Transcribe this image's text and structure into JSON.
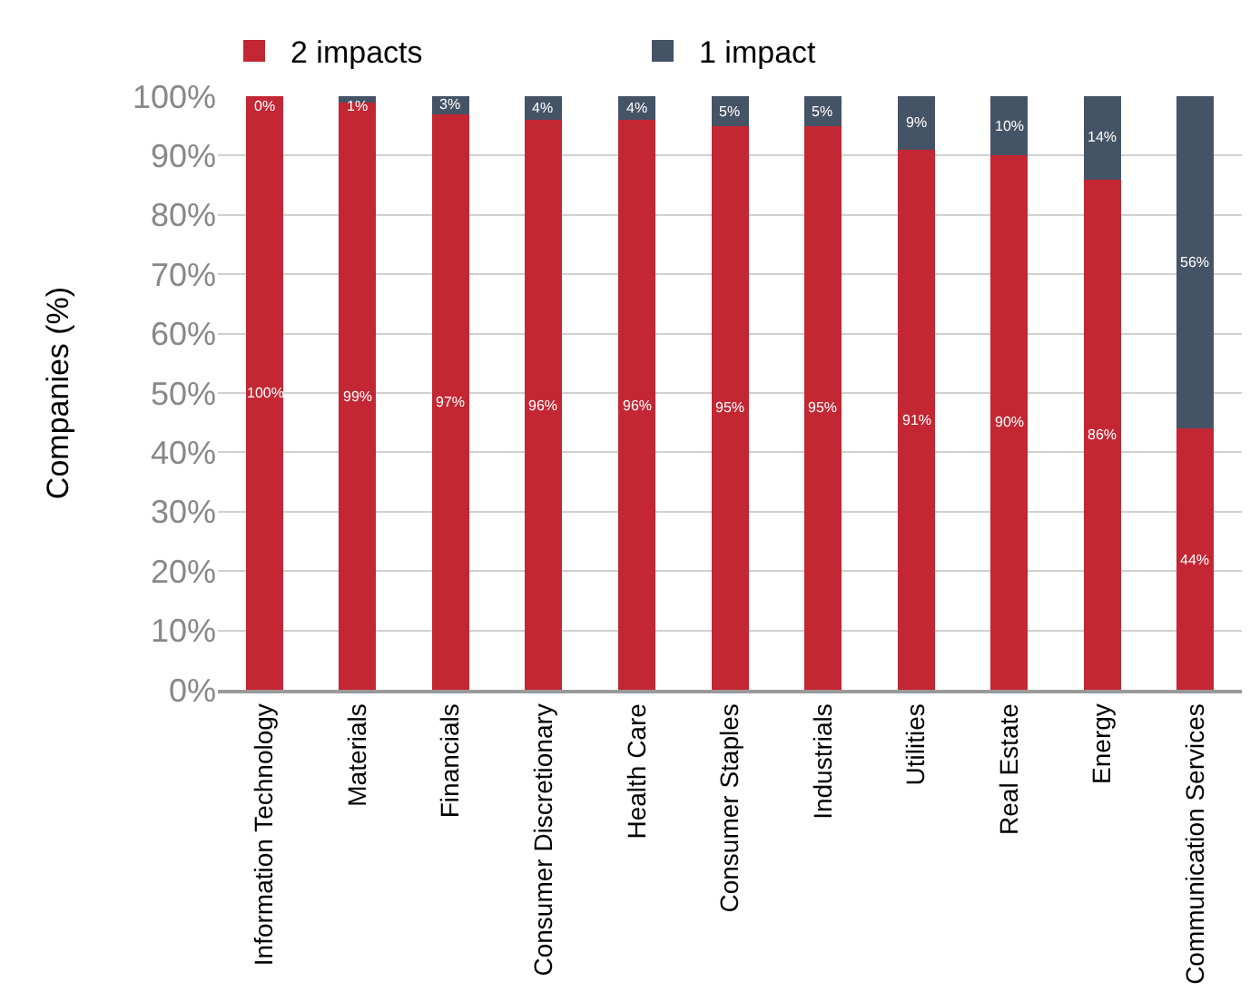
{
  "chart_data": {
    "type": "bar",
    "stacked": true,
    "ylabel": "Companies (%)",
    "categories": [
      "Information Technology",
      "Materials",
      "Financials",
      "Consumer Discretionary",
      "Health Care",
      "Consumer Staples",
      "Industrials",
      "Utilities",
      "Real Estate",
      "Energy",
      "Communication Services"
    ],
    "series": [
      {
        "name": "2 impacts",
        "color": "#c32733",
        "values": [
          100,
          99,
          97,
          96,
          96,
          95,
          95,
          91,
          90,
          86,
          44
        ],
        "value_labels": [
          "100%",
          "99%",
          "97%",
          "96%",
          "96%",
          "95%",
          "95%",
          "91%",
          "90%",
          "86%",
          "44%"
        ]
      },
      {
        "name": "1 impact",
        "color": "#455366",
        "values": [
          0,
          1,
          3,
          4,
          4,
          5,
          5,
          9,
          10,
          14,
          56
        ],
        "value_labels": [
          "0%",
          "1%",
          "3%",
          "4%",
          "4%",
          "5%",
          "5%",
          "9%",
          "10%",
          "14%",
          "56%"
        ]
      }
    ],
    "ylim": [
      0,
      100
    ],
    "yticks": [
      {
        "value": 0,
        "label": "0%"
      },
      {
        "value": 10,
        "label": "10%"
      },
      {
        "value": 20,
        "label": "20%"
      },
      {
        "value": 30,
        "label": "30%"
      },
      {
        "value": 40,
        "label": "40%"
      },
      {
        "value": 50,
        "label": "50%"
      },
      {
        "value": 60,
        "label": "60%"
      },
      {
        "value": 70,
        "label": "70%"
      },
      {
        "value": 80,
        "label": "80%"
      },
      {
        "value": 90,
        "label": "90%"
      },
      {
        "value": 100,
        "label": "100%"
      }
    ],
    "grid": "y",
    "legend": "top left"
  }
}
